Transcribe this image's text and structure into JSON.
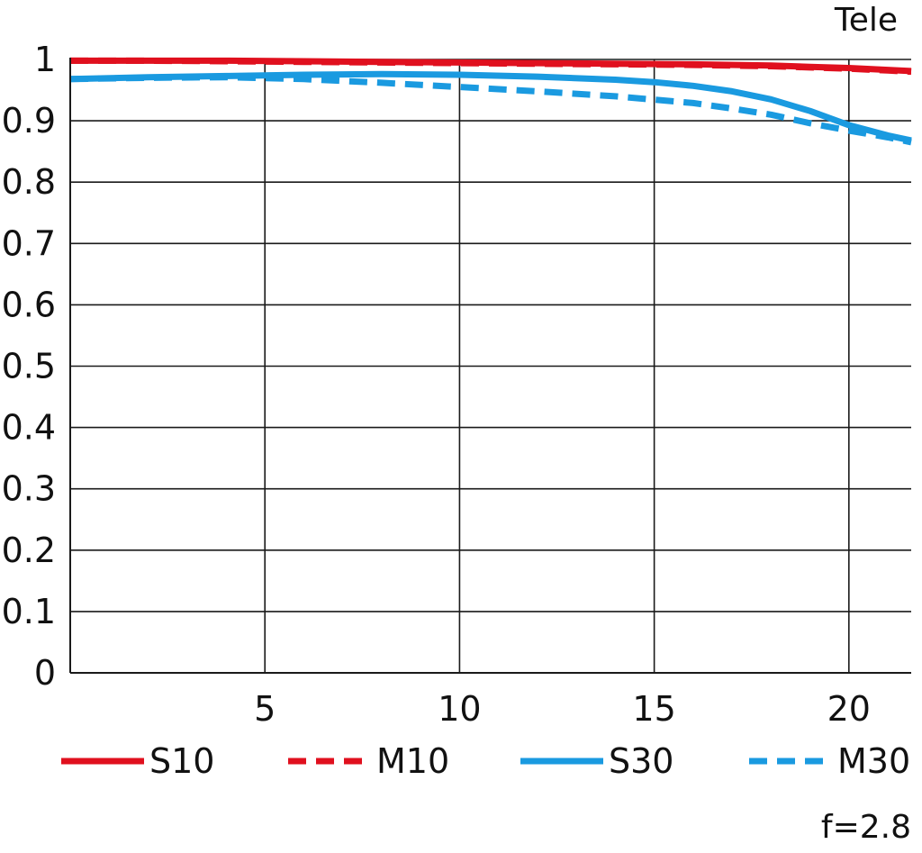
{
  "chart_data": {
    "type": "line",
    "title": "Tele",
    "annotation": "f=2.8",
    "xlabel": "",
    "ylabel": "",
    "xlim": [
      0,
      21.6
    ],
    "ylim": [
      0,
      1
    ],
    "x_ticks": [
      5,
      10,
      15,
      20
    ],
    "x_tick_labels": [
      "5",
      "10",
      "15",
      "20"
    ],
    "y_ticks": [
      0,
      0.1,
      0.2,
      0.3,
      0.4,
      0.5,
      0.6,
      0.7,
      0.8,
      0.9,
      1
    ],
    "y_tick_labels": [
      "0",
      "0.1",
      "0.2",
      "0.3",
      "0.4",
      "0.5",
      "0.6",
      "0.7",
      "0.8",
      "0.9",
      "1"
    ],
    "grid": true,
    "legend_position": "bottom",
    "series": [
      {
        "name": "S10",
        "color": "#e0101e",
        "dashed": false,
        "x": [
          0,
          2,
          4,
          6,
          8,
          10,
          12,
          14,
          16,
          18,
          19,
          20,
          21,
          21.6
        ],
        "y": [
          0.998,
          0.998,
          0.998,
          0.997,
          0.996,
          0.995,
          0.994,
          0.993,
          0.992,
          0.99,
          0.988,
          0.986,
          0.983,
          0.981
        ]
      },
      {
        "name": "M10",
        "color": "#e0101e",
        "dashed": true,
        "x": [
          0,
          2,
          4,
          6,
          8,
          10,
          12,
          14,
          16,
          18,
          19,
          20,
          21,
          21.6
        ],
        "y": [
          0.998,
          0.998,
          0.997,
          0.996,
          0.995,
          0.994,
          0.993,
          0.992,
          0.991,
          0.989,
          0.987,
          0.985,
          0.982,
          0.98
        ]
      },
      {
        "name": "S30",
        "color": "#1a9ae0",
        "dashed": false,
        "x": [
          0,
          2,
          4,
          6,
          8,
          10,
          12,
          14,
          15,
          16,
          17,
          18,
          19,
          20,
          21,
          21.6
        ],
        "y": [
          0.968,
          0.971,
          0.973,
          0.975,
          0.976,
          0.975,
          0.972,
          0.967,
          0.963,
          0.957,
          0.948,
          0.935,
          0.916,
          0.893,
          0.876,
          0.868
        ]
      },
      {
        "name": "M30",
        "color": "#1a9ae0",
        "dashed": true,
        "x": [
          0,
          2,
          4,
          6,
          8,
          10,
          12,
          14,
          16,
          17,
          18,
          19,
          20,
          21,
          21.6
        ],
        "y": [
          0.968,
          0.97,
          0.971,
          0.968,
          0.962,
          0.955,
          0.948,
          0.94,
          0.929,
          0.92,
          0.91,
          0.896,
          0.884,
          0.873,
          0.865
        ]
      }
    ]
  }
}
